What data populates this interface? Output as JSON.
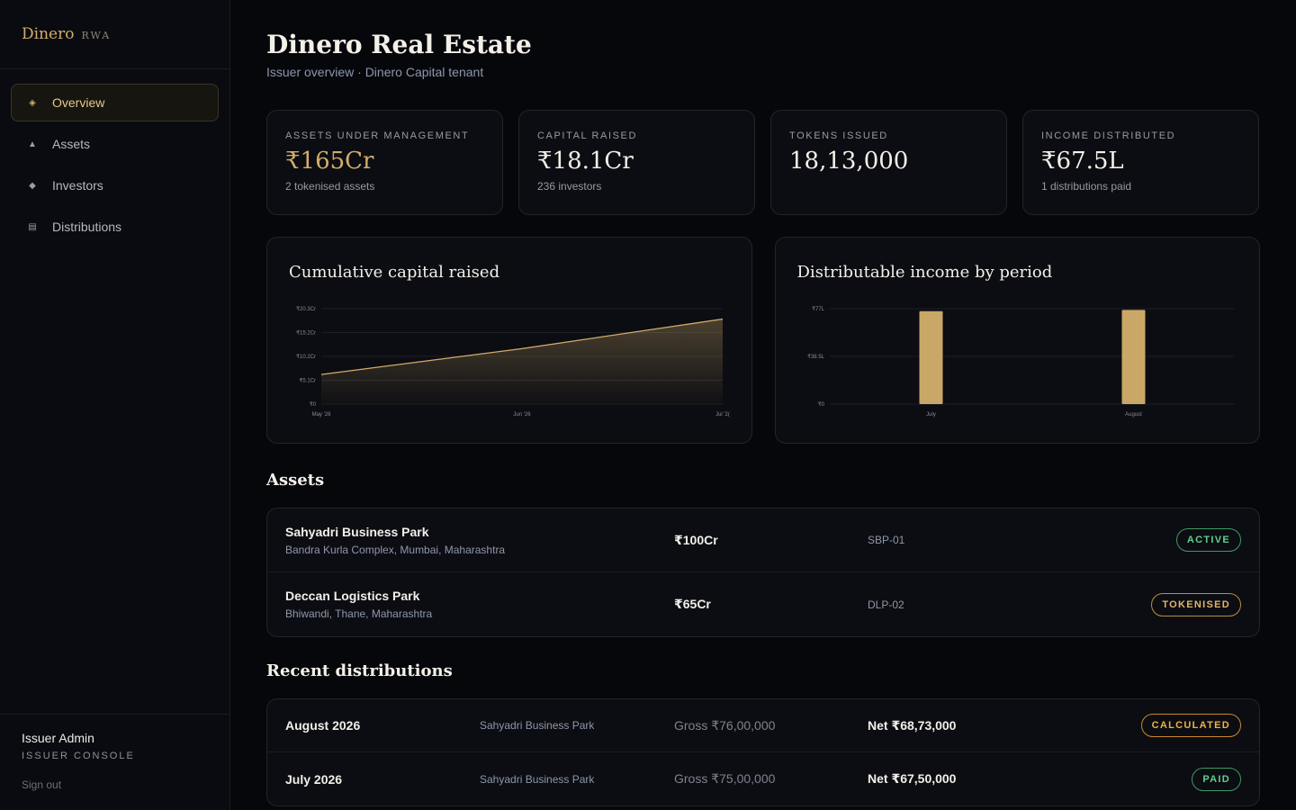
{
  "brand": {
    "name": "Dinero",
    "sub": "RWA"
  },
  "nav": [
    {
      "label": "Overview",
      "icon": "diamond-icon",
      "glyph": "◈",
      "active": true
    },
    {
      "label": "Assets",
      "icon": "triangle-icon",
      "glyph": "▲"
    },
    {
      "label": "Investors",
      "icon": "diamond-icon",
      "glyph": "◆"
    },
    {
      "label": "Distributions",
      "icon": "ledger-icon",
      "glyph": "▤"
    }
  ],
  "user": {
    "name": "Issuer Admin",
    "role": "ISSUER CONSOLE",
    "signout": "Sign out"
  },
  "header": {
    "title": "Dinero Real Estate",
    "subtitle": "Issuer overview · Dinero Capital tenant"
  },
  "stats": [
    {
      "label": "ASSETS UNDER MANAGEMENT",
      "value": "₹165Cr",
      "sub": "2 tokenised assets",
      "accent": "#d2ad6b"
    },
    {
      "label": "CAPITAL RAISED",
      "value": "₹18.1Cr",
      "sub": "236 investors"
    },
    {
      "label": "TOKENS ISSUED",
      "value": "18,13,000",
      "sub": ""
    },
    {
      "label": "INCOME DISTRIBUTED",
      "value": "₹67.5L",
      "sub": "1 distributions paid"
    }
  ],
  "chart_data": [
    {
      "type": "area",
      "title": "Cumulative capital raised",
      "x_ticks": [
        "May '26",
        "Jun '26",
        "Jul '2("
      ],
      "y_ticks": [
        "₹0",
        "₹5.1Cr",
        "₹10.2Cr",
        "₹15.2Cr",
        "₹20.3Cr"
      ],
      "ylim": [
        0,
        20.3
      ],
      "x": [
        0,
        0.5,
        1
      ],
      "values": [
        6.3,
        11.8,
        18.1
      ],
      "color": "#d2ad6b",
      "grid": true
    },
    {
      "type": "bar",
      "title": "Distributable income by period",
      "categories": [
        "July",
        "August"
      ],
      "values": [
        75,
        76
      ],
      "y_ticks": [
        "₹0",
        "₹38.5L",
        "₹77L"
      ],
      "ylim": [
        0,
        77
      ],
      "color": "#c9a766",
      "grid": true
    }
  ],
  "assets_section": {
    "title": "Assets"
  },
  "assets": [
    {
      "name": "Sahyadri Business Park",
      "location": "Bandra Kurla Complex, Mumbai, Maharashtra",
      "value": "₹100Cr",
      "code": "SBP-01",
      "status": "ACTIVE",
      "status_color": "green"
    },
    {
      "name": "Deccan Logistics Park",
      "location": "Bhiwandi, Thane, Maharashtra",
      "value": "₹65Cr",
      "code": "DLP-02",
      "status": "TOKENISED",
      "status_color": "gold"
    }
  ],
  "distributions_section": {
    "title": "Recent distributions"
  },
  "distributions": [
    {
      "period": "August 2026",
      "asset": "Sahyadri Business Park",
      "gross": "Gross ₹76,00,000",
      "net": "Net ₹68,73,000",
      "status": "CALCULATED",
      "status_color": "amber"
    },
    {
      "period": "July 2026",
      "asset": "Sahyadri Business Park",
      "gross": "Gross ₹75,00,000",
      "net": "Net ₹67,50,000",
      "status": "PAID",
      "status_color": "green"
    }
  ]
}
